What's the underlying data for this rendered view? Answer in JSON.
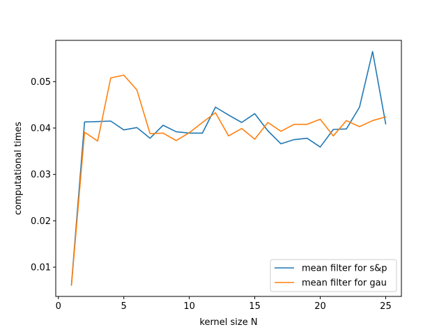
{
  "chart_data": {
    "type": "line",
    "title": "",
    "xlabel": "kernel size N",
    "ylabel": "computational times",
    "xlim": [
      -0.2,
      26.2
    ],
    "ylim": [
      0.0037,
      0.0589
    ],
    "xticks": [
      0,
      5,
      10,
      15,
      20,
      25
    ],
    "yticks": [
      0.01,
      0.02,
      0.03,
      0.04,
      0.05
    ],
    "xtick_labels": [
      "0",
      "5",
      "10",
      "15",
      "20",
      "25"
    ],
    "ytick_labels": [
      "0.01",
      "0.02",
      "0.03",
      "0.04",
      "0.05"
    ],
    "grid": false,
    "legend_position": "bottom-right",
    "x": [
      1,
      2,
      3,
      4,
      5,
      6,
      7,
      8,
      9,
      10,
      11,
      12,
      13,
      14,
      15,
      16,
      17,
      18,
      19,
      20,
      21,
      22,
      23,
      24,
      25
    ],
    "series": [
      {
        "name": "mean filter for s&p",
        "color": "#1f77b4",
        "values": [
          0.0063,
          0.0413,
          0.0414,
          0.0415,
          0.0396,
          0.0401,
          0.0378,
          0.0406,
          0.0392,
          0.0389,
          0.0389,
          0.0445,
          0.0428,
          0.0412,
          0.0431,
          0.0394,
          0.0366,
          0.0375,
          0.0378,
          0.0359,
          0.0397,
          0.0398,
          0.0445,
          0.0565,
          0.0409
        ]
      },
      {
        "name": "mean filter for gau",
        "color": "#ff7f0e",
        "values": [
          0.0061,
          0.0391,
          0.0372,
          0.0508,
          0.0514,
          0.0482,
          0.0388,
          0.0389,
          0.0373,
          0.039,
          0.0412,
          0.0433,
          0.0383,
          0.0399,
          0.0376,
          0.0412,
          0.0393,
          0.0408,
          0.0408,
          0.0419,
          0.0383,
          0.0416,
          0.0403,
          0.0416,
          0.0424
        ]
      }
    ]
  }
}
